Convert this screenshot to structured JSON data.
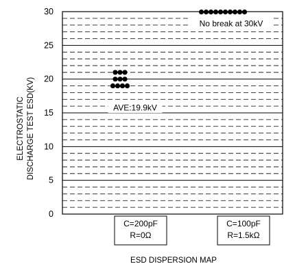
{
  "chart_data": {
    "type": "scatter",
    "title": "",
    "caption": "ESD DISPERSION MAP",
    "ylabel_lines": [
      "ELECTROSTATIC",
      "DISCHARGE TEST ESD(KV)"
    ],
    "xlabel": "",
    "ylim": [
      0,
      30
    ],
    "yticks": [
      0,
      5,
      10,
      15,
      20,
      25,
      30
    ],
    "grid": "horizontal dashed every 1 kV, solid every 5 kV",
    "categories": [
      {
        "lines": [
          "C=200pF",
          "R=0Ω"
        ]
      },
      {
        "lines": [
          "C=100pF",
          "R=1.5kΩ"
        ]
      }
    ],
    "points": [
      {
        "category": 0,
        "y": 21
      },
      {
        "category": 0,
        "y": 21
      },
      {
        "category": 0,
        "y": 21
      },
      {
        "category": 0,
        "y": 20
      },
      {
        "category": 0,
        "y": 20
      },
      {
        "category": 0,
        "y": 20
      },
      {
        "category": 0,
        "y": 19
      },
      {
        "category": 0,
        "y": 19
      },
      {
        "category": 0,
        "y": 19
      },
      {
        "category": 0,
        "y": 19
      },
      {
        "category": 1,
        "y": 30
      },
      {
        "category": 1,
        "y": 30
      },
      {
        "category": 1,
        "y": 30
      },
      {
        "category": 1,
        "y": 30
      },
      {
        "category": 1,
        "y": 30
      },
      {
        "category": 1,
        "y": 30
      },
      {
        "category": 1,
        "y": 30
      },
      {
        "category": 1,
        "y": 30
      },
      {
        "category": 1,
        "y": 30
      },
      {
        "category": 1,
        "y": 30
      }
    ],
    "annotations": [
      {
        "text": "AVE:19.9kV",
        "category": 0,
        "y": 15.7
      },
      {
        "text": "No break at 30kV",
        "category": 1,
        "y": 28.2
      }
    ]
  }
}
